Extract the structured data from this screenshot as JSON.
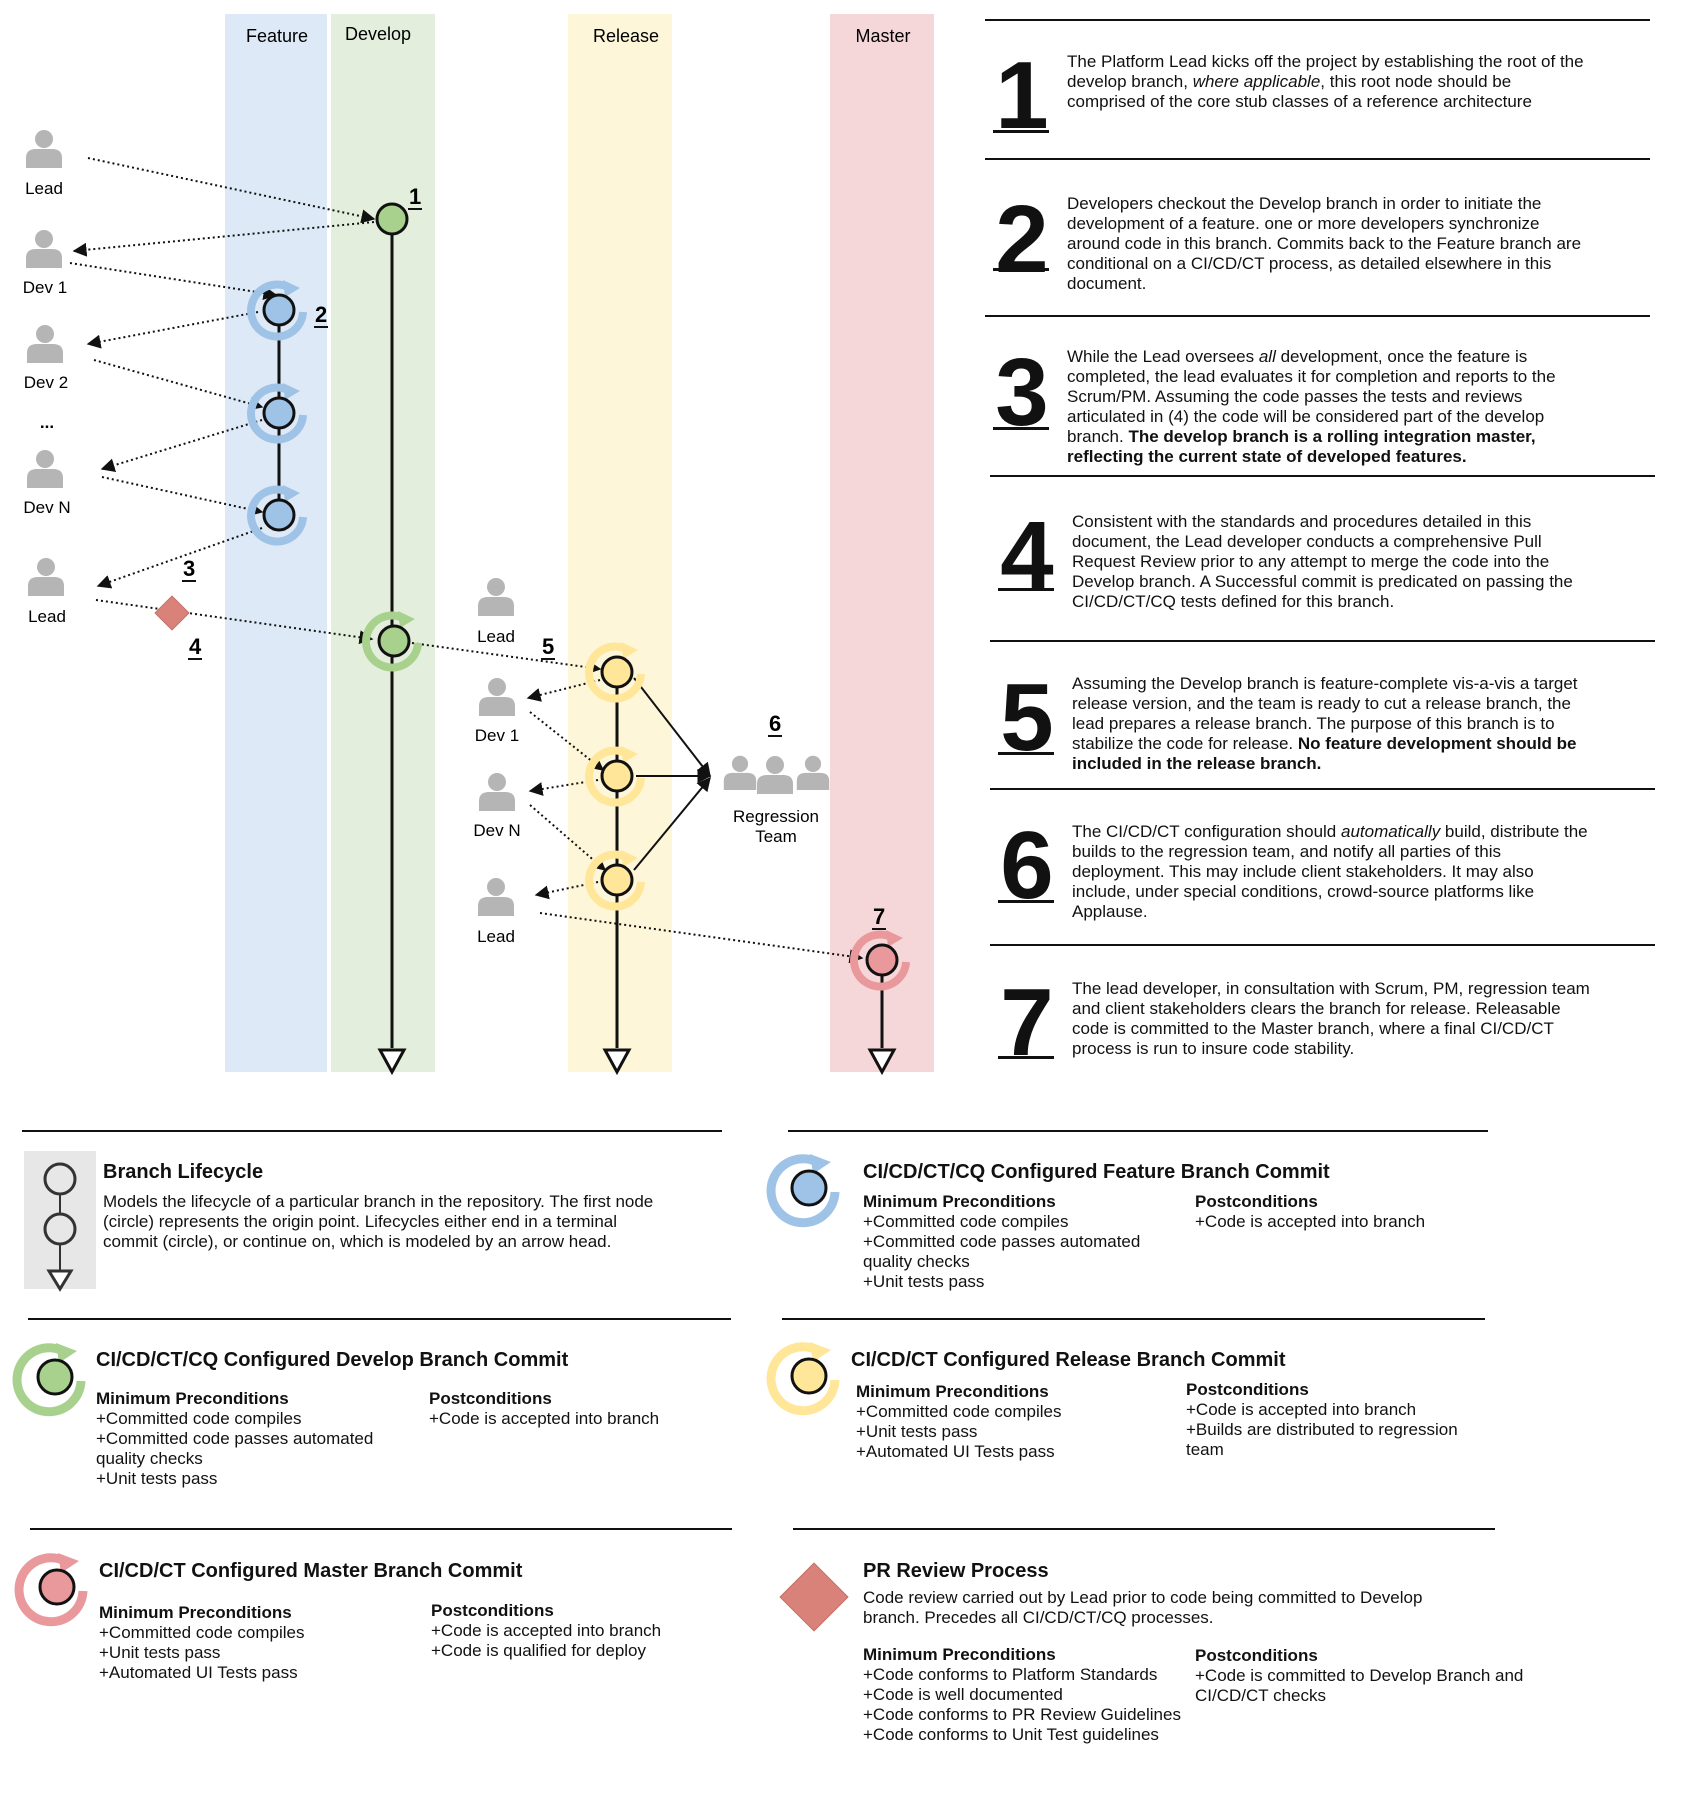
{
  "lanes": {
    "feature": "Feature",
    "develop": "Develop",
    "release": "Release",
    "master": "Master"
  },
  "people": {
    "left_lead_top": "Lead",
    "left_dev1": "Dev 1",
    "left_dev2": "Dev 2",
    "left_ellipsis": "...",
    "left_devn": "Dev N",
    "left_lead_bottom": "Lead",
    "rel_lead_top": "Lead",
    "rel_dev1": "Dev 1",
    "rel_devn": "Dev N",
    "rel_lead_bottom": "Lead",
    "regression_team": "Regression Team"
  },
  "markers": {
    "m1": "1",
    "m2": "2",
    "m3": "3",
    "m4": "4",
    "m5": "5",
    "m6": "6",
    "m7": "7"
  },
  "steps": [
    {
      "num": "1",
      "text": "The Platform Lead kicks off the project by establishing the root of the develop branch, where applicable, this root node should be comprised of the core stub classes of a reference architecture"
    },
    {
      "num": "2",
      "text": "Developers checkout the Develop branch in order to initiate the development of a feature. one or more developers synchronize around code in this branch. Commits back to the Feature branch are conditional on a CI/CD/CT process, as detailed elsewhere in this document."
    },
    {
      "num": "3",
      "text": "While the Lead oversees all development, once the feature is completed, the lead evaluates it for completion and reports to the Scrum/PM. Assuming the code passes the tests and reviews articulated in (4) the code will be considered part of the develop branch.",
      "bold": "The develop branch is a rolling integration master, reflecting the current state of developed features."
    },
    {
      "num": "4",
      "text": "Consistent with the standards and procedures detailed in this document, the Lead developer conducts a comprehensive Pull Request Review prior to any attempt to merge the code into the Develop branch. A Successful commit is predicated on passing the CI/CD/CT/CQ tests defined for this branch."
    },
    {
      "num": "5",
      "text": "Assuming the Develop branch is feature-complete vis-a-vis a target release version, and the team is ready to cut a release branch, the lead prepares a release branch. The purpose of this branch is to stabilize the code for release.",
      "bold": "No feature development should be included in the release branch."
    },
    {
      "num": "6",
      "text": "The CI/CD/CT configuration should automatically build, distribute the builds to the regression team, and notify all parties of this deployment. This may include client stakeholders. It may also include, under special conditions, crowd-source platforms like Applause."
    },
    {
      "num": "7",
      "text": "The lead developer, in consultation with Scrum, PM, regression team and client stakeholders clears the branch for release. Releasable code is committed to the Master branch, where a final CI/CD/CT process is run to insure code stability."
    }
  ],
  "legend": {
    "lifecycle": {
      "title": "Branch Lifecycle",
      "desc": "Models the lifecycle of a particular branch in the repository. The first node (circle) represents the origin point. Lifecycles either end in a terminal commit (circle), or continue on, which is modeled by an arrow head."
    },
    "feature": {
      "title": "CI/CD/CT/CQ Configured Feature Branch Commit",
      "pre_head": "Minimum Preconditions",
      "pre": [
        "+Committed code compiles",
        "+Committed code passes automated quality checks",
        "+Unit tests pass"
      ],
      "post_head": "Postconditions",
      "post": [
        "+Code is accepted into branch"
      ]
    },
    "develop": {
      "title": "CI/CD/CT/CQ Configured Develop Branch Commit",
      "pre_head": "Minimum Preconditions",
      "pre": [
        "+Committed code compiles",
        "+Committed code passes automated quality checks",
        "+Unit tests pass"
      ],
      "post_head": "Postconditions",
      "post": [
        "+Code is accepted into branch"
      ]
    },
    "release": {
      "title": "CI/CD/CT Configured Release Branch Commit",
      "pre_head": "Minimum Preconditions",
      "pre": [
        "+Committed code compiles",
        "+Unit tests pass",
        "+Automated UI Tests pass"
      ],
      "post_head": "Postconditions",
      "post": [
        "+Code is accepted into branch",
        "+Builds are distributed to regression team"
      ]
    },
    "master": {
      "title": "CI/CD/CT Configured Master Branch Commit",
      "pre_head": "Minimum Preconditions",
      "pre": [
        "+Committed code compiles",
        "+Unit tests pass",
        "+Automated UI Tests pass"
      ],
      "post_head": "Postconditions",
      "post": [
        "+Code is accepted into branch",
        "+Code is qualified for deploy"
      ]
    },
    "pr": {
      "title": "PR Review Process",
      "desc": "Code review carried out by Lead prior to code being committed to Develop branch. Precedes all CI/CD/CT/CQ processes.",
      "pre_head": "Minimum Preconditions",
      "pre": [
        "+Code conforms to Platform Standards",
        "+Code is well documented",
        "+Code conforms to PR Review Guidelines",
        "+Code conforms to Unit Test guidelines"
      ],
      "post_head": "Postconditions",
      "post": [
        "+Code is committed to Develop Branch and CI/CD/CT checks"
      ]
    }
  },
  "colors": {
    "feature_lane": "#dde9f6",
    "develop_lane": "#e3efdc",
    "release_lane": "#fdf6d8",
    "master_lane": "#f6d7d9",
    "feature_node": "#9ec3e6",
    "develop_node": "#a9d18e",
    "release_node": "#ffe699",
    "master_node": "#e9999c",
    "pr_diamond": "#d9827a",
    "person": "#b5b5b5"
  }
}
